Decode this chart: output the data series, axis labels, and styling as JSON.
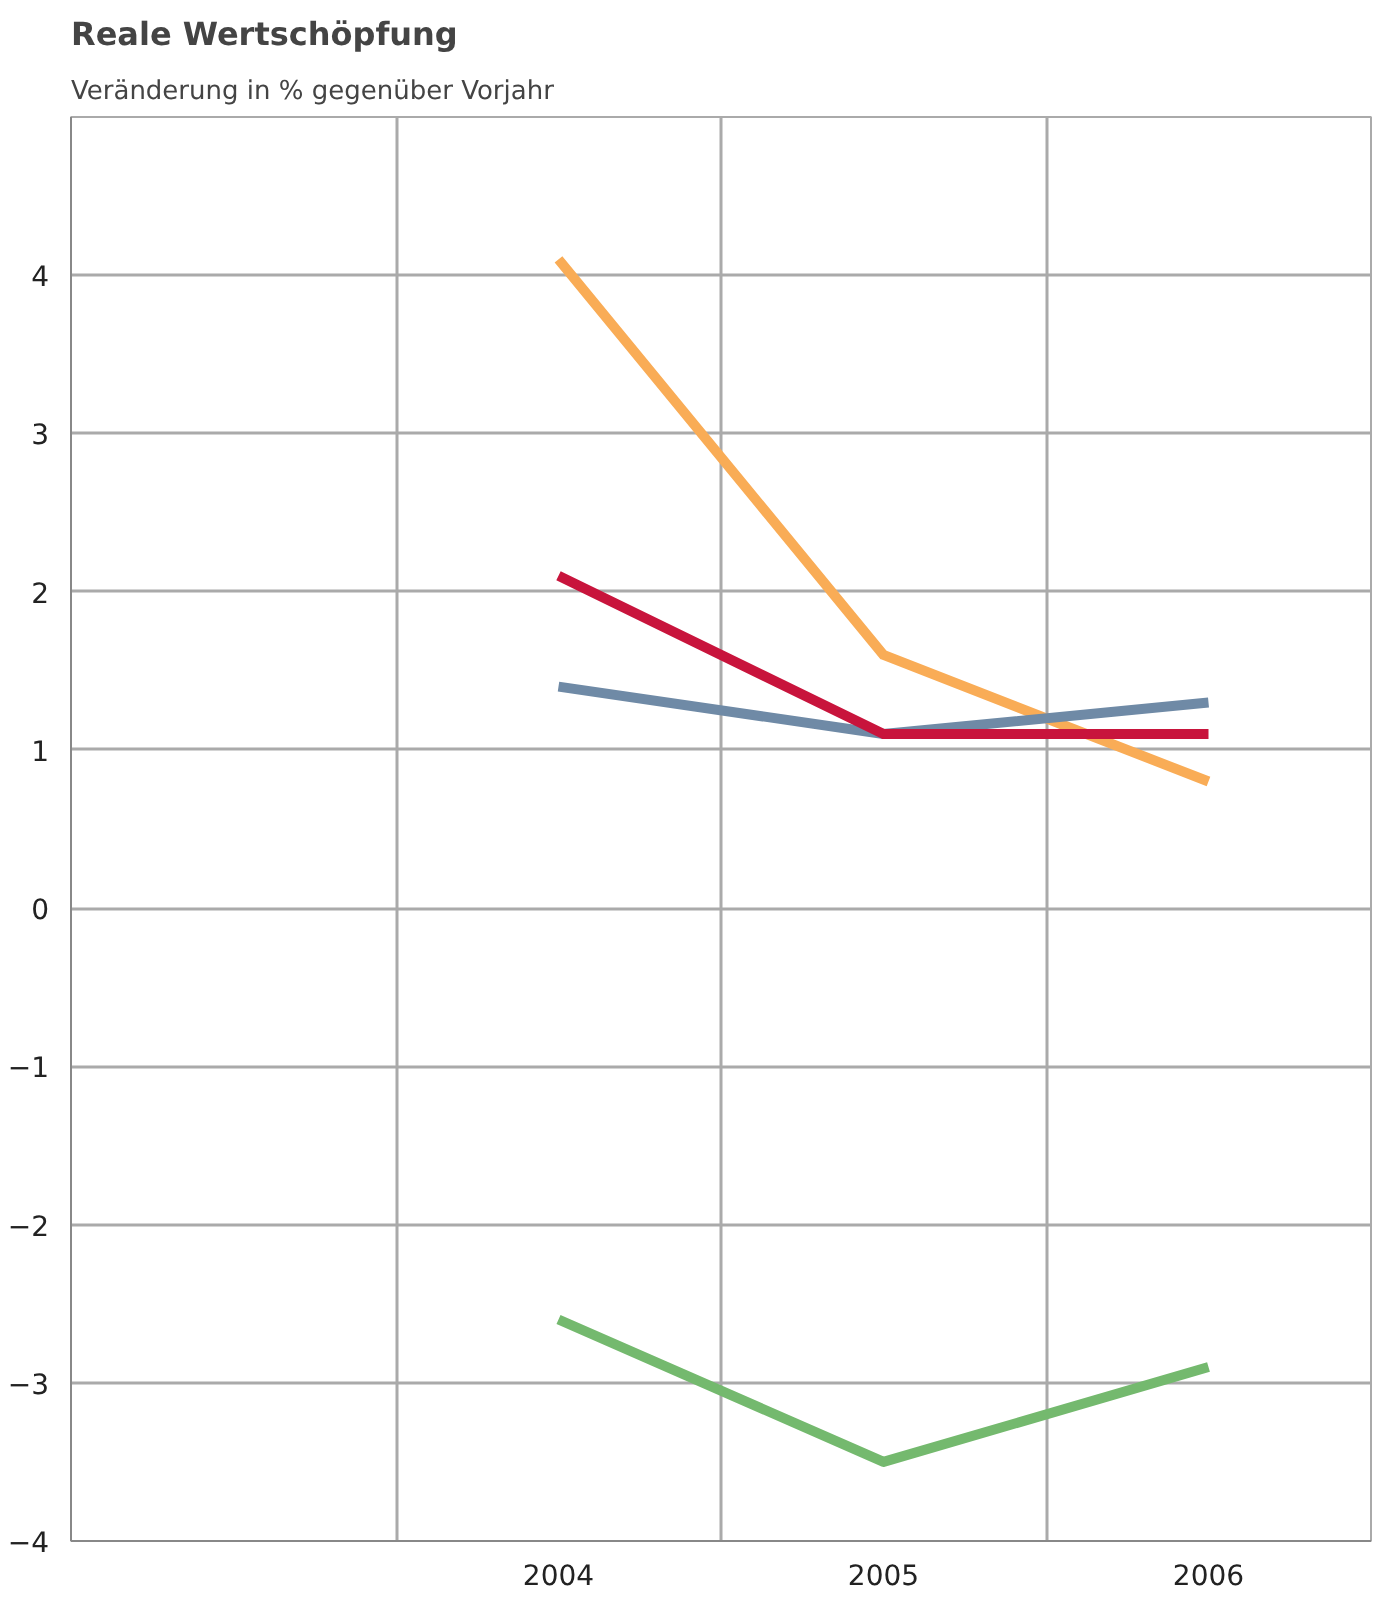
{
  "chart_data": {
    "type": "line",
    "title": "Reale Wertschöpfung",
    "subtitle": "Veränderung in % gegenüber Vorjahr",
    "categories": [
      null,
      "2004",
      "2005",
      "2006"
    ],
    "series": [
      {
        "color": "#f9ac56",
        "values": [
          null,
          4.1,
          1.6,
          0.8
        ]
      },
      {
        "color": "#6f8aa6",
        "values": [
          null,
          1.4,
          1.1,
          1.3
        ]
      },
      {
        "color": "#c8143c",
        "values": [
          null,
          2.1,
          1.1,
          1.1
        ]
      },
      {
        "color": "#74b96e",
        "values": [
          null,
          -2.6,
          -3.5,
          -2.9
        ]
      }
    ],
    "ylim": [
      -4,
      5
    ],
    "yticks": [
      -4,
      -3,
      -2,
      -1,
      0,
      1,
      2,
      3,
      4
    ],
    "grid": true,
    "marker": "none",
    "line_style": "solid"
  }
}
